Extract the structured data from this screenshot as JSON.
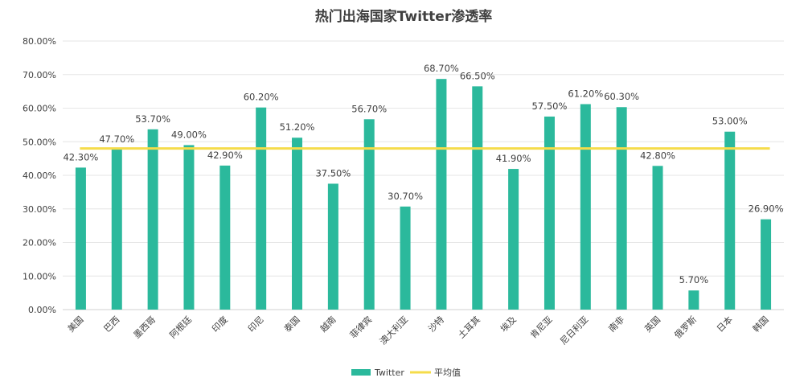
{
  "chart_data": {
    "type": "bar",
    "title": "热门出海国家Twitter渗透率",
    "categories": [
      "美国",
      "巴西",
      "墨西哥",
      "阿根廷",
      "印度",
      "印尼",
      "泰国",
      "越南",
      "菲律宾",
      "澳大利亚",
      "沙特",
      "土耳其",
      "埃及",
      "肯尼亚",
      "尼日利亚",
      "南非",
      "英国",
      "俄罗斯",
      "日本",
      "韩国"
    ],
    "series": [
      {
        "name": "Twitter",
        "type": "bar",
        "color": "#2bb99c",
        "values": [
          42.3,
          47.7,
          53.7,
          49.0,
          42.9,
          60.2,
          51.2,
          37.5,
          56.7,
          30.7,
          68.7,
          66.5,
          41.9,
          57.5,
          61.2,
          60.3,
          42.8,
          5.7,
          53.0,
          26.9
        ],
        "labels": [
          "42.30%",
          "47.70%",
          "53.70%",
          "49.00%",
          "42.90%",
          "60.20%",
          "51.20%",
          "37.50%",
          "56.70%",
          "30.70%",
          "68.70%",
          "66.50%",
          "41.90%",
          "57.50%",
          "61.20%",
          "60.30%",
          "42.80%",
          "5.70%",
          "53.00%",
          "26.90%"
        ]
      },
      {
        "name": "平均值",
        "type": "line",
        "color": "#f5dc4a",
        "value": 48.0
      }
    ],
    "yticks": [
      "0.00%",
      "10.00%",
      "20.00%",
      "30.00%",
      "40.00%",
      "50.00%",
      "60.00%",
      "70.00%",
      "80.00%"
    ],
    "ylim": [
      0,
      80
    ],
    "grid": true,
    "legend_position": "bottom"
  }
}
